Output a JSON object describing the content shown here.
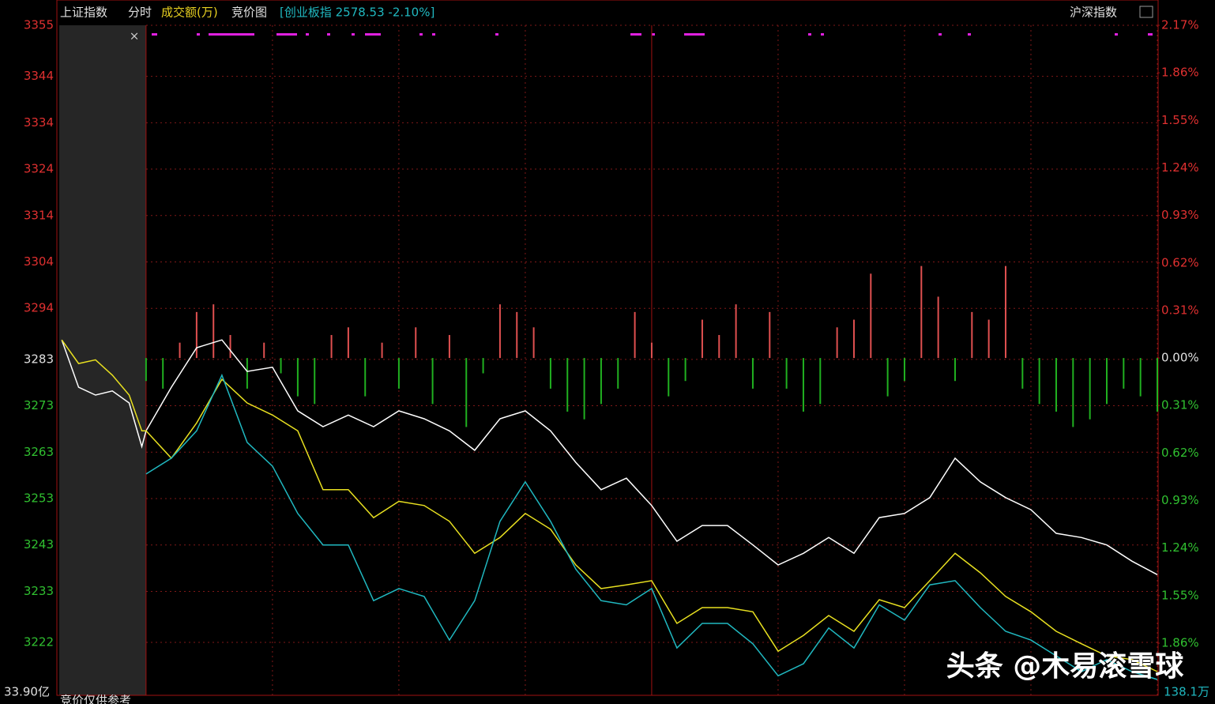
{
  "chart_data": {
    "type": "line",
    "header": {
      "index_name": "上证指数",
      "mode": "分时",
      "volume_label": "成交额(万)",
      "auction_label": "竞价图",
      "compare_label": "[创业板指 2578.53 -2.10%]",
      "right_title": "沪深指数",
      "close": "×"
    },
    "footer": {
      "left_amount": "33.90亿",
      "auction_note": "竞价仅供参考",
      "right_amount": "138.1万",
      "watermark": "头条 @木易滚雪球"
    },
    "x": [
      -20,
      -16,
      -12,
      -8,
      -4,
      -1,
      0,
      6,
      12,
      18,
      24,
      30,
      36,
      42,
      48,
      54,
      60,
      66,
      72,
      78,
      84,
      90,
      96,
      102,
      108,
      114,
      120,
      126,
      132,
      138,
      144,
      150,
      156,
      162,
      168,
      174,
      180,
      186,
      192,
      198,
      204,
      210,
      216,
      222,
      228,
      234,
      240
    ],
    "xlim": [
      -20.6,
      240
    ],
    "xticks": [
      0,
      30,
      60,
      90,
      120,
      150,
      180,
      210,
      240
    ],
    "ylim": [
      3210.6,
      3355
    ],
    "yticks": [
      3355,
      3344,
      3334,
      3324,
      3314,
      3304,
      3294,
      3283,
      3273,
      3263,
      3253,
      3243,
      3233,
      3222
    ],
    "y2lim": [
      -2.2,
      2.17
    ],
    "y2ticks": [
      {
        "value": 2.17,
        "label": "2.17%"
      },
      {
        "value": 1.86,
        "label": "1.86%"
      },
      {
        "value": 1.55,
        "label": "1.55%"
      },
      {
        "value": 1.24,
        "label": "1.24%"
      },
      {
        "value": 0.93,
        "label": "0.93%"
      },
      {
        "value": 0.62,
        "label": "0.62%"
      },
      {
        "value": 0.31,
        "label": "0.31%"
      },
      {
        "value": 0,
        "label": "0.00%"
      },
      {
        "value": -0.31,
        "label": "0.31%"
      },
      {
        "value": -0.62,
        "label": "0.62%"
      },
      {
        "value": -0.93,
        "label": "0.93%"
      },
      {
        "value": -1.24,
        "label": "1.24%"
      },
      {
        "value": -1.55,
        "label": "1.55%"
      },
      {
        "value": -1.86,
        "label": "1.86%"
      }
    ],
    "grid": true,
    "series": [
      {
        "color": "#ffffff",
        "values": [
          3287.2,
          3277,
          3275.3,
          3276.2,
          3273.6,
          3264.2,
          3267.6,
          3277,
          3285.5,
          3287.2,
          3280.4,
          3281.3,
          3271.9,
          3268.5,
          3271,
          3268.5,
          3271.9,
          3270.2,
          3267.6,
          3263.4,
          3270.2,
          3271.9,
          3267.6,
          3260.8,
          3254.9,
          3257.4,
          3251.5,
          3243.8,
          3247.2,
          3247.2,
          3243,
          3238.7,
          3241.2,
          3244.6,
          3241.2,
          3248.9,
          3249.8,
          3253.2,
          3261.7,
          3256.6,
          3253.2,
          3250.6,
          3245.5,
          3244.6,
          3243,
          3239.5,
          3236.6
        ]
      },
      {
        "color": "#e8e020",
        "values": [
          3287.2,
          3282.1,
          3282.9,
          3279.6,
          3275.3,
          3267.6,
          3267.6,
          3261.7,
          3269.3,
          3278.7,
          3273.6,
          3271,
          3267.6,
          3254.9,
          3254.9,
          3248.9,
          3252.4,
          3251.5,
          3248.1,
          3241.2,
          3244.6,
          3249.8,
          3246.4,
          3238.7,
          3233.6,
          3234.4,
          3235.3,
          3226.1,
          3229.5,
          3229.5,
          3228.6,
          3220.1,
          3223.5,
          3227.8,
          3224.4,
          3231.2,
          3229.5,
          3235.3,
          3241.2,
          3237,
          3231.9,
          3228.6,
          3224.4,
          3221.7,
          3219.1,
          3218.3,
          3215.7
        ]
      },
      {
        "color": "#20b8c0",
        "values": [
          null,
          null,
          null,
          null,
          null,
          null,
          3258.3,
          3261.7,
          3267.6,
          3279.6,
          3265.1,
          3260,
          3249.8,
          3243,
          3243,
          3231,
          3233.6,
          3231.9,
          3222.5,
          3231,
          3248.1,
          3256.6,
          3248.1,
          3237.8,
          3231,
          3230.1,
          3233.6,
          3220.8,
          3226.1,
          3226.1,
          3221.7,
          3214.8,
          3217.4,
          3225.1,
          3220.8,
          3230.1,
          3226.8,
          3234.4,
          3235.3,
          3229.5,
          3224.4,
          3222.5,
          3219.1,
          3215.7,
          3218.3,
          3215.7,
          3214
        ]
      }
    ],
    "bars": {
      "axis": "y2",
      "up_color": "#e05050",
      "down_color": "#20b020",
      "x": [
        0,
        4,
        8,
        12,
        16,
        20,
        24,
        28,
        32,
        36,
        40,
        44,
        48,
        52,
        56,
        60,
        64,
        68,
        72,
        76,
        80,
        84,
        88,
        92,
        96,
        100,
        104,
        108,
        112,
        116,
        120,
        124,
        128,
        132,
        136,
        140,
        144,
        148,
        152,
        156,
        160,
        164,
        168,
        172,
        176,
        180,
        184,
        188,
        192,
        196,
        200,
        204,
        208,
        212,
        216,
        220,
        224,
        228,
        232,
        236,
        240
      ],
      "values": [
        -0.15,
        -0.2,
        0.1,
        0.3,
        0.35,
        0.15,
        -0.2,
        0.1,
        -0.1,
        -0.25,
        -0.3,
        0.15,
        0.2,
        -0.25,
        0.1,
        -0.2,
        0.2,
        -0.3,
        0.15,
        -0.45,
        -0.1,
        0.35,
        0.3,
        0.2,
        -0.2,
        -0.35,
        -0.4,
        -0.3,
        -0.2,
        0.3,
        0.1,
        -0.25,
        -0.15,
        0.25,
        0.15,
        0.35,
        -0.2,
        0.3,
        -0.2,
        -0.35,
        -0.3,
        0.2,
        0.25,
        0.55,
        -0.25,
        -0.15,
        0.6,
        0.4,
        -0.15,
        0.3,
        0.25,
        0.6,
        -0.2,
        -0.3,
        -0.35,
        -0.45,
        -0.4,
        -0.3,
        -0.2,
        -0.25,
        -0.35
      ]
    }
  }
}
